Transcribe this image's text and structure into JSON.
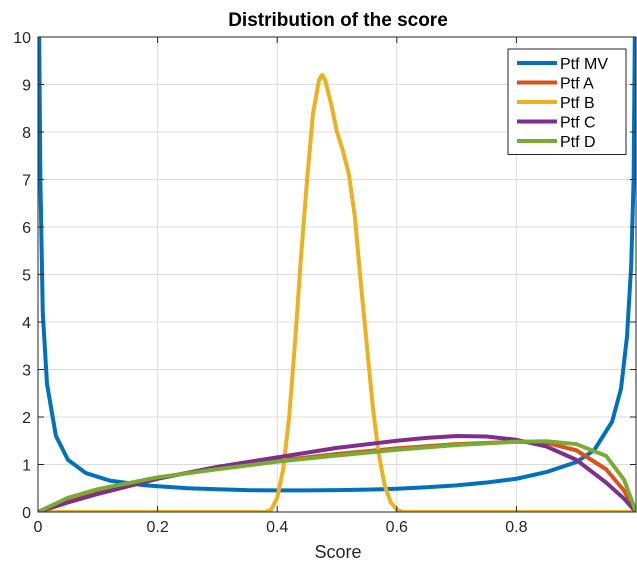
{
  "chart_data": {
    "type": "line",
    "title": "Distribution of the score",
    "xlabel": "Score",
    "ylabel": "",
    "xlim": [
      0,
      1
    ],
    "ylim": [
      0,
      10
    ],
    "grid": true,
    "legend_position": "top-right",
    "xticks": [
      "0",
      "0.2",
      "0.4",
      "0.6",
      "0.8"
    ],
    "yticks": [
      "0",
      "1",
      "2",
      "3",
      "4",
      "5",
      "6",
      "7",
      "8",
      "9",
      "10"
    ],
    "series": [
      {
        "name": "Ptf MV",
        "color": "#0072BD",
        "points": [
          [
            0.002,
            10.0
          ],
          [
            0.004,
            7.0
          ],
          [
            0.008,
            4.2
          ],
          [
            0.015,
            2.7
          ],
          [
            0.03,
            1.6
          ],
          [
            0.05,
            1.1
          ],
          [
            0.08,
            0.82
          ],
          [
            0.12,
            0.66
          ],
          [
            0.18,
            0.56
          ],
          [
            0.25,
            0.5
          ],
          [
            0.3,
            0.48
          ],
          [
            0.35,
            0.46
          ],
          [
            0.4,
            0.455
          ],
          [
            0.45,
            0.455
          ],
          [
            0.5,
            0.46
          ],
          [
            0.55,
            0.47
          ],
          [
            0.6,
            0.49
          ],
          [
            0.65,
            0.52
          ],
          [
            0.7,
            0.56
          ],
          [
            0.75,
            0.62
          ],
          [
            0.8,
            0.7
          ],
          [
            0.85,
            0.84
          ],
          [
            0.9,
            1.05
          ],
          [
            0.93,
            1.3
          ],
          [
            0.96,
            1.9
          ],
          [
            0.975,
            2.6
          ],
          [
            0.985,
            3.7
          ],
          [
            0.992,
            5.2
          ],
          [
            0.996,
            7.0
          ],
          [
            0.998,
            10.0
          ]
        ]
      },
      {
        "name": "Ptf A",
        "color": "#D95319",
        "points": [
          [
            0,
            0
          ],
          [
            0.05,
            0.28
          ],
          [
            0.1,
            0.45
          ],
          [
            0.2,
            0.72
          ],
          [
            0.3,
            0.92
          ],
          [
            0.4,
            1.08
          ],
          [
            0.5,
            1.22
          ],
          [
            0.6,
            1.34
          ],
          [
            0.7,
            1.43
          ],
          [
            0.8,
            1.48
          ],
          [
            0.85,
            1.46
          ],
          [
            0.9,
            1.3
          ],
          [
            0.95,
            0.9
          ],
          [
            0.98,
            0.45
          ],
          [
            1.0,
            0
          ]
        ]
      },
      {
        "name": "Ptf B",
        "color": "#EDB120",
        "points": [
          [
            0,
            0
          ],
          [
            0.38,
            0
          ],
          [
            0.39,
            0.05
          ],
          [
            0.4,
            0.3
          ],
          [
            0.41,
            0.9
          ],
          [
            0.42,
            2.0
          ],
          [
            0.43,
            3.6
          ],
          [
            0.44,
            5.4
          ],
          [
            0.45,
            7.0
          ],
          [
            0.46,
            8.4
          ],
          [
            0.47,
            9.1
          ],
          [
            0.475,
            9.2
          ],
          [
            0.48,
            9.1
          ],
          [
            0.49,
            8.6
          ],
          [
            0.5,
            8.0
          ],
          [
            0.51,
            7.6
          ],
          [
            0.52,
            7.1
          ],
          [
            0.53,
            6.2
          ],
          [
            0.54,
            4.8
          ],
          [
            0.55,
            3.5
          ],
          [
            0.56,
            2.2
          ],
          [
            0.57,
            1.2
          ],
          [
            0.58,
            0.55
          ],
          [
            0.59,
            0.2
          ],
          [
            0.6,
            0.05
          ],
          [
            0.61,
            0
          ],
          [
            1.0,
            0
          ]
        ]
      },
      {
        "name": "Ptf C",
        "color": "#7E2F8E",
        "points": [
          [
            0,
            0
          ],
          [
            0.05,
            0.2
          ],
          [
            0.1,
            0.38
          ],
          [
            0.2,
            0.7
          ],
          [
            0.3,
            0.95
          ],
          [
            0.4,
            1.15
          ],
          [
            0.5,
            1.35
          ],
          [
            0.6,
            1.5
          ],
          [
            0.65,
            1.56
          ],
          [
            0.7,
            1.6
          ],
          [
            0.75,
            1.59
          ],
          [
            0.8,
            1.52
          ],
          [
            0.85,
            1.38
          ],
          [
            0.9,
            1.1
          ],
          [
            0.95,
            0.62
          ],
          [
            0.98,
            0.28
          ],
          [
            1.0,
            0
          ]
        ]
      },
      {
        "name": "Ptf D",
        "color": "#77AC30",
        "points": [
          [
            0,
            0
          ],
          [
            0.05,
            0.3
          ],
          [
            0.1,
            0.48
          ],
          [
            0.2,
            0.73
          ],
          [
            0.3,
            0.9
          ],
          [
            0.4,
            1.06
          ],
          [
            0.5,
            1.19
          ],
          [
            0.6,
            1.31
          ],
          [
            0.7,
            1.41
          ],
          [
            0.8,
            1.48
          ],
          [
            0.85,
            1.49
          ],
          [
            0.9,
            1.43
          ],
          [
            0.95,
            1.18
          ],
          [
            0.98,
            0.68
          ],
          [
            1.0,
            0
          ]
        ]
      }
    ]
  }
}
